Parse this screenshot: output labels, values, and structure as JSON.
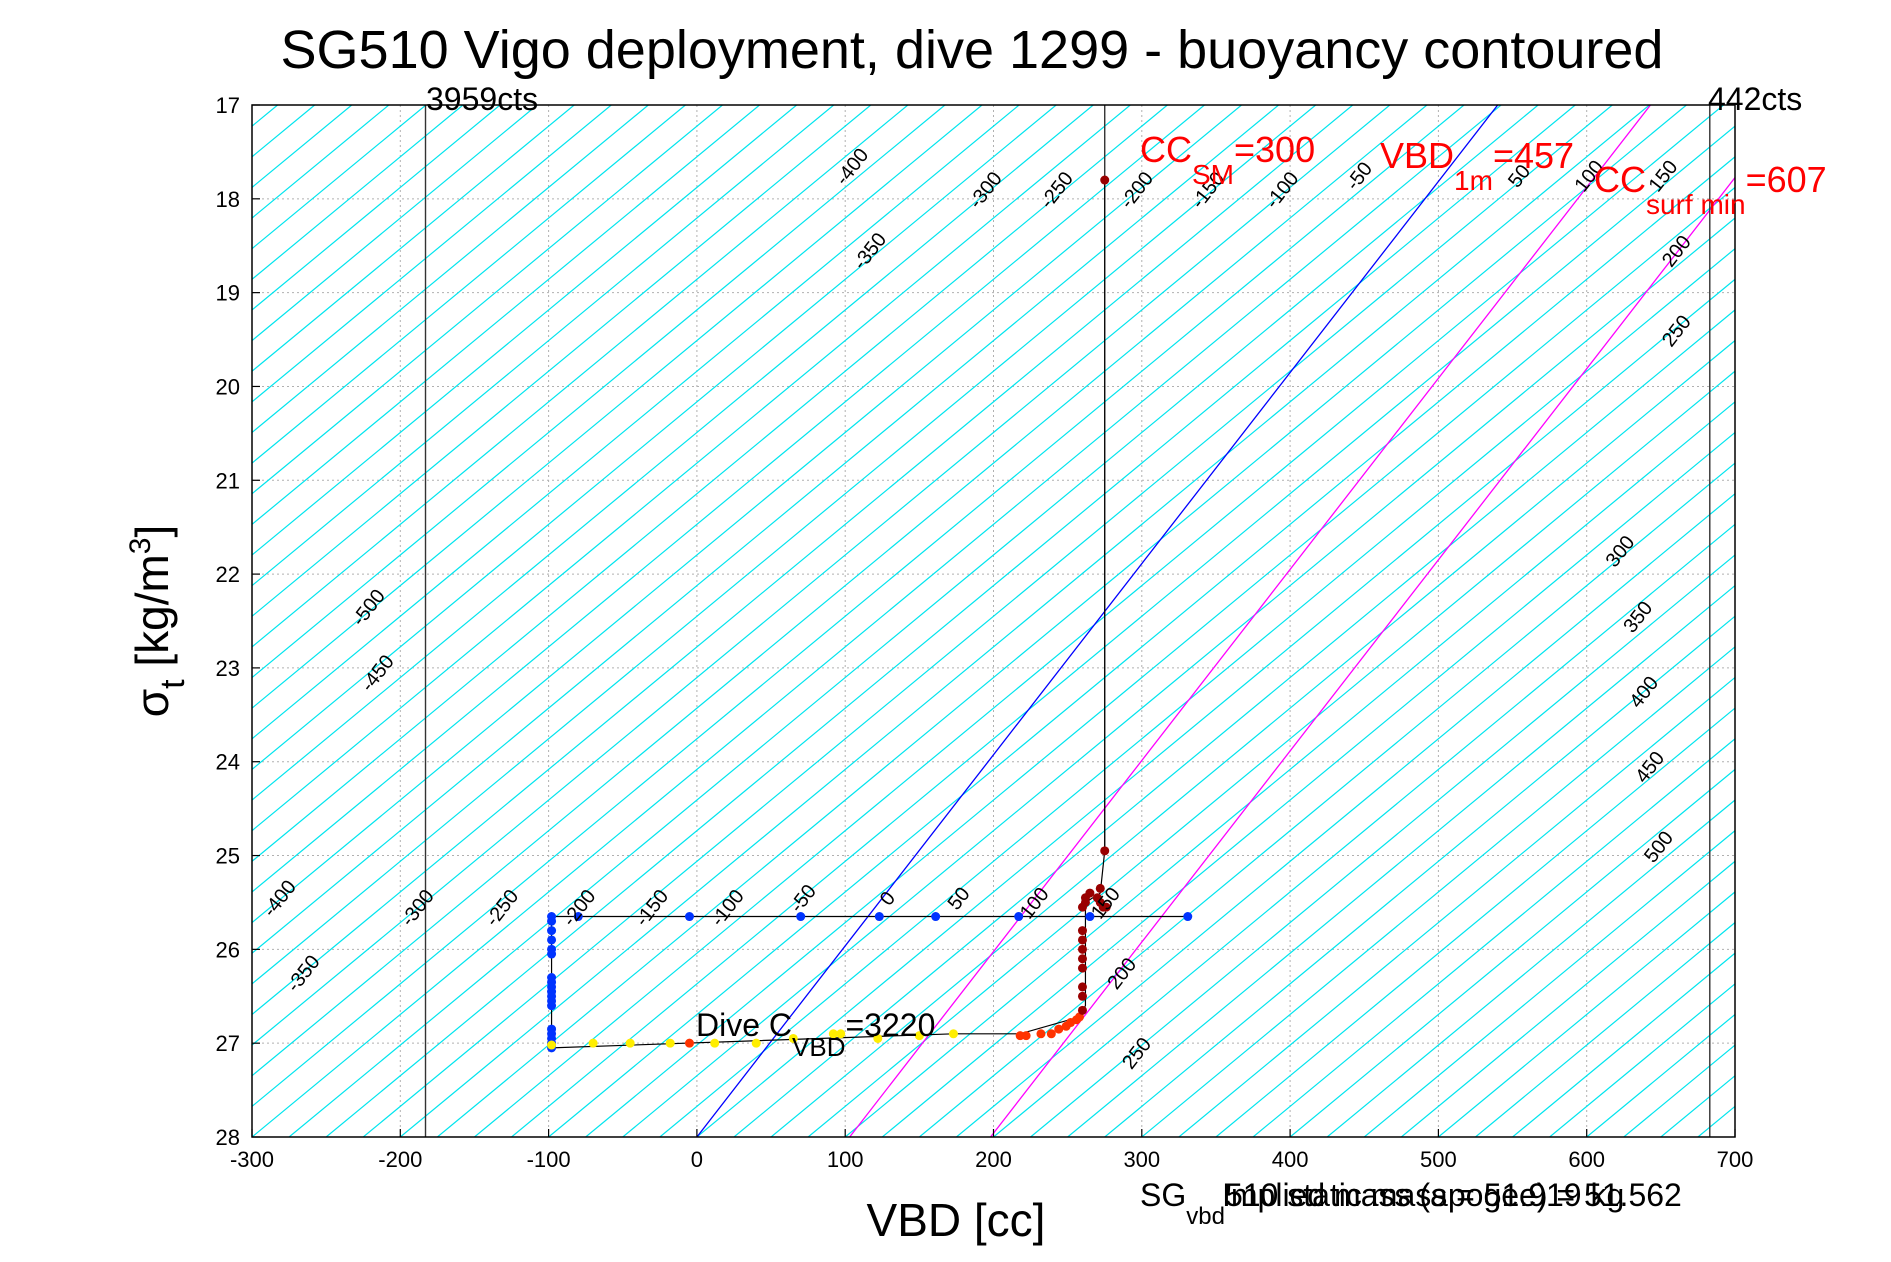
{
  "chart_data": {
    "type": "scatter",
    "title": "SG510 Vigo deployment, dive 1299 - buoyancy contoured",
    "xlabel": "VBD [cc]",
    "ylabel_main": "σ",
    "ylabel_sub": "t",
    "ylabel_units": " [kg/m",
    "ylabel_sup": "3",
    "ylabel_close": "]",
    "xlim": [
      -300,
      700
    ],
    "ylim": [
      17,
      28
    ],
    "y_reversed": true,
    "grid": "on",
    "xticks": [
      -300,
      -200,
      -100,
      0,
      100,
      200,
      300,
      400,
      500,
      600,
      700
    ],
    "yticks": [
      17,
      18,
      19,
      20,
      21,
      22,
      23,
      24,
      25,
      26,
      27,
      28
    ],
    "colors": {
      "contour": "#00e5ee",
      "grid": "#b0b0b0",
      "neutral_line": "#0000ff",
      "magenta": "#ff00ff",
      "annotation": "#ff0000",
      "descent": "#0033ff",
      "ascent_bottom": "#ffee00",
      "ascent_mid": "#ff3300",
      "ascent_top": "#990000"
    },
    "contours": {
      "slope_sigma_per_cc": 0.01306,
      "step_cc": 25,
      "sigma_ref": 28
    },
    "contour_labels": [
      {
        "text": "-400",
        "x": 108,
        "y": 17.7
      },
      {
        "text": "-350",
        "x": 120,
        "y": 18.6
      },
      {
        "text": "-300",
        "x": 198,
        "y": 17.95
      },
      {
        "text": "-250",
        "x": 246,
        "y": 17.95
      },
      {
        "text": "-200",
        "x": 300,
        "y": 17.95
      },
      {
        "text": "-150",
        "x": 348,
        "y": 17.95
      },
      {
        "text": "-100",
        "x": 398,
        "y": 17.95
      },
      {
        "text": "-50",
        "x": 450,
        "y": 17.8
      },
      {
        "text": "50",
        "x": 558,
        "y": 17.8
      },
      {
        "text": "100",
        "x": 605,
        "y": 17.8
      },
      {
        "text": "150",
        "x": 655,
        "y": 17.8
      },
      {
        "text": "200",
        "x": 664,
        "y": 18.6
      },
      {
        "text": "250",
        "x": 664,
        "y": 19.45
      },
      {
        "text": "300",
        "x": 626,
        "y": 21.8
      },
      {
        "text": "350",
        "x": 638,
        "y": 22.5
      },
      {
        "text": "400",
        "x": 642,
        "y": 23.3
      },
      {
        "text": "450",
        "x": 646,
        "y": 24.1
      },
      {
        "text": "500",
        "x": 652,
        "y": 24.95
      },
      {
        "text": "-500",
        "x": -218,
        "y": 22.4
      },
      {
        "text": "-450",
        "x": -212,
        "y": 23.1
      },
      {
        "text": "-400",
        "x": -278,
        "y": 25.5
      },
      {
        "text": "-350",
        "x": -262,
        "y": 26.3
      },
      {
        "text": "-300",
        "x": -185,
        "y": 25.6
      },
      {
        "text": "-250",
        "x": -128,
        "y": 25.6
      },
      {
        "text": "-200",
        "x": -76,
        "y": 25.6
      },
      {
        "text": "-150",
        "x": -27,
        "y": 25.6
      },
      {
        "text": "-100",
        "x": 24,
        "y": 25.6
      },
      {
        "text": "-50",
        "x": 75,
        "y": 25.5
      },
      {
        "text": "0",
        "x": 132,
        "y": 25.5
      },
      {
        "text": "50",
        "x": 180,
        "y": 25.5
      },
      {
        "text": "100",
        "x": 231,
        "y": 25.55
      },
      {
        "text": "150",
        "x": 279,
        "y": 25.55
      },
      {
        "text": "200",
        "x": 290,
        "y": 26.3
      },
      {
        "text": "250",
        "x": 300,
        "y": 27.15
      }
    ],
    "neutral_line": {
      "x": [
        0,
        540
      ],
      "y": [
        28,
        17
      ]
    },
    "magenta_lines": [
      {
        "x": [
          103,
          643
        ],
        "y": [
          28,
          17
        ]
      },
      {
        "x": [
          198,
          738
        ],
        "y": [
          28,
          17
        ]
      }
    ],
    "vertical_lines": [
      {
        "x": -183,
        "label": "3959cts"
      },
      {
        "x": 683,
        "label": "442cts"
      },
      {
        "x": 275,
        "label": ""
      }
    ],
    "descent": {
      "x": [
        331,
        265,
        217,
        161,
        123,
        70,
        -5,
        -80,
        -98,
        -98,
        -98,
        -98,
        -98,
        -98,
        -98,
        -98,
        -98,
        -98,
        -98,
        -98,
        -98,
        -98,
        -98,
        -98,
        -98,
        -98,
        -98
      ],
      "y": [
        25.65,
        25.65,
        25.65,
        25.65,
        25.65,
        25.65,
        25.65,
        25.65,
        25.65,
        25.7,
        25.8,
        25.9,
        26.0,
        26.05,
        26.3,
        26.35,
        26.4,
        26.45,
        26.5,
        26.55,
        26.6,
        26.85,
        26.9,
        26.95,
        27.0,
        27.02,
        27.05
      ]
    },
    "ascent_bottom": {
      "x": [
        -98,
        -70,
        -45,
        -18,
        12,
        40,
        65,
        92,
        97,
        122,
        150,
        173
      ],
      "y": [
        27.02,
        27.0,
        27.0,
        27.0,
        27.0,
        27.0,
        26.95,
        26.9,
        26.9,
        26.95,
        26.92,
        26.9
      ]
    },
    "ascent_mid": {
      "x": [
        -5,
        218,
        222,
        232,
        239,
        244,
        249,
        252,
        256,
        258
      ],
      "y": [
        27.0,
        26.92,
        26.92,
        26.9,
        26.9,
        26.85,
        26.82,
        26.78,
        26.75,
        26.72
      ]
    },
    "ascent_top": {
      "x": [
        260,
        260,
        260,
        260,
        260,
        260,
        260,
        260,
        260,
        262,
        262,
        265,
        270,
        272,
        272,
        274,
        276,
        275
      ],
      "y": [
        26.65,
        26.5,
        26.4,
        26.2,
        26.1,
        26.0,
        25.9,
        25.8,
        25.55,
        25.5,
        25.45,
        25.4,
        25.45,
        25.5,
        25.35,
        25.55,
        25.55,
        24.95
      ]
    },
    "top_point": {
      "x": 275,
      "y": 17.8
    },
    "profile_line": {
      "x": [
        331,
        -98,
        -98,
        173,
        218,
        258,
        262,
        262,
        272,
        275,
        275
      ],
      "y": [
        25.65,
        25.65,
        27.05,
        26.9,
        26.9,
        26.72,
        26.6,
        25.5,
        25.4,
        24.95,
        17.8
      ]
    },
    "annotations": {
      "cc_sm": {
        "main": "CC",
        "sub": "SM",
        "value": "=300"
      },
      "vbd_1m": {
        "main": "VBD",
        "sub": "1m",
        "value": "=457"
      },
      "cc_surf": {
        "main": "CC",
        "sub": "surf min",
        "value": "=607"
      },
      "dive_c": {
        "main": "Dive C",
        "sub": "VBD",
        "value": "=3220"
      },
      "bottom_a": {
        "main": "SG",
        "sub": "vbd",
        "value": "510 static mass = 51.919 kg"
      },
      "bottom_b": "Implied mass (apogee) = 51.562"
    }
  }
}
